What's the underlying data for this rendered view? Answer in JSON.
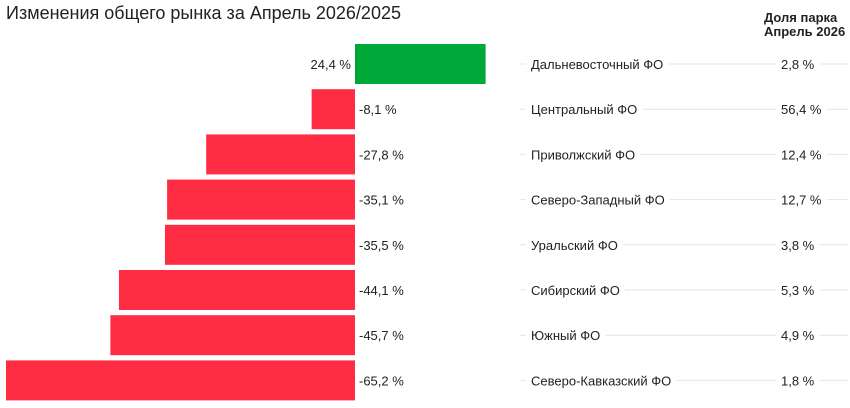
{
  "colors": {
    "positive": "#00a83a",
    "negative": "#ff2d43",
    "row_line": "#e4e4e4"
  },
  "chart_data": {
    "type": "bar",
    "orientation": "horizontal",
    "title": "Изменения общего рынка за Апрель 2026/2025",
    "share_header": [
      "Доля парка",
      "Апрель 2026"
    ],
    "categories": [
      "Дальневосточный ФО",
      "Центральный ФО",
      "Приволжский ФО",
      "Северо-Западный ФО",
      "Уральский ФО",
      "Сибирский ФО",
      "Южный ФО",
      "Северо-Кавказский ФО"
    ],
    "values": [
      24.4,
      -8.1,
      -27.8,
      -35.1,
      -35.5,
      -44.1,
      -45.7,
      -65.2
    ],
    "value_labels": [
      "24,4 %",
      "-8,1 %",
      "-27,8 %",
      "-35,1 %",
      "-35,5 %",
      "-44,1 %",
      "-45,7 %",
      "-65,2 %"
    ],
    "share_values": [
      2.8,
      56.4,
      12.4,
      12.7,
      3.8,
      5.3,
      4.9,
      1.8
    ],
    "share_labels": [
      "2,8 %",
      "56,4 %",
      "12,4 %",
      "12,7 %",
      "3,8 %",
      "5,3 %",
      "4,9 %",
      "1,8 %"
    ],
    "xlim": [
      -65.2,
      24.4
    ],
    "legend": "none",
    "grid": false
  }
}
